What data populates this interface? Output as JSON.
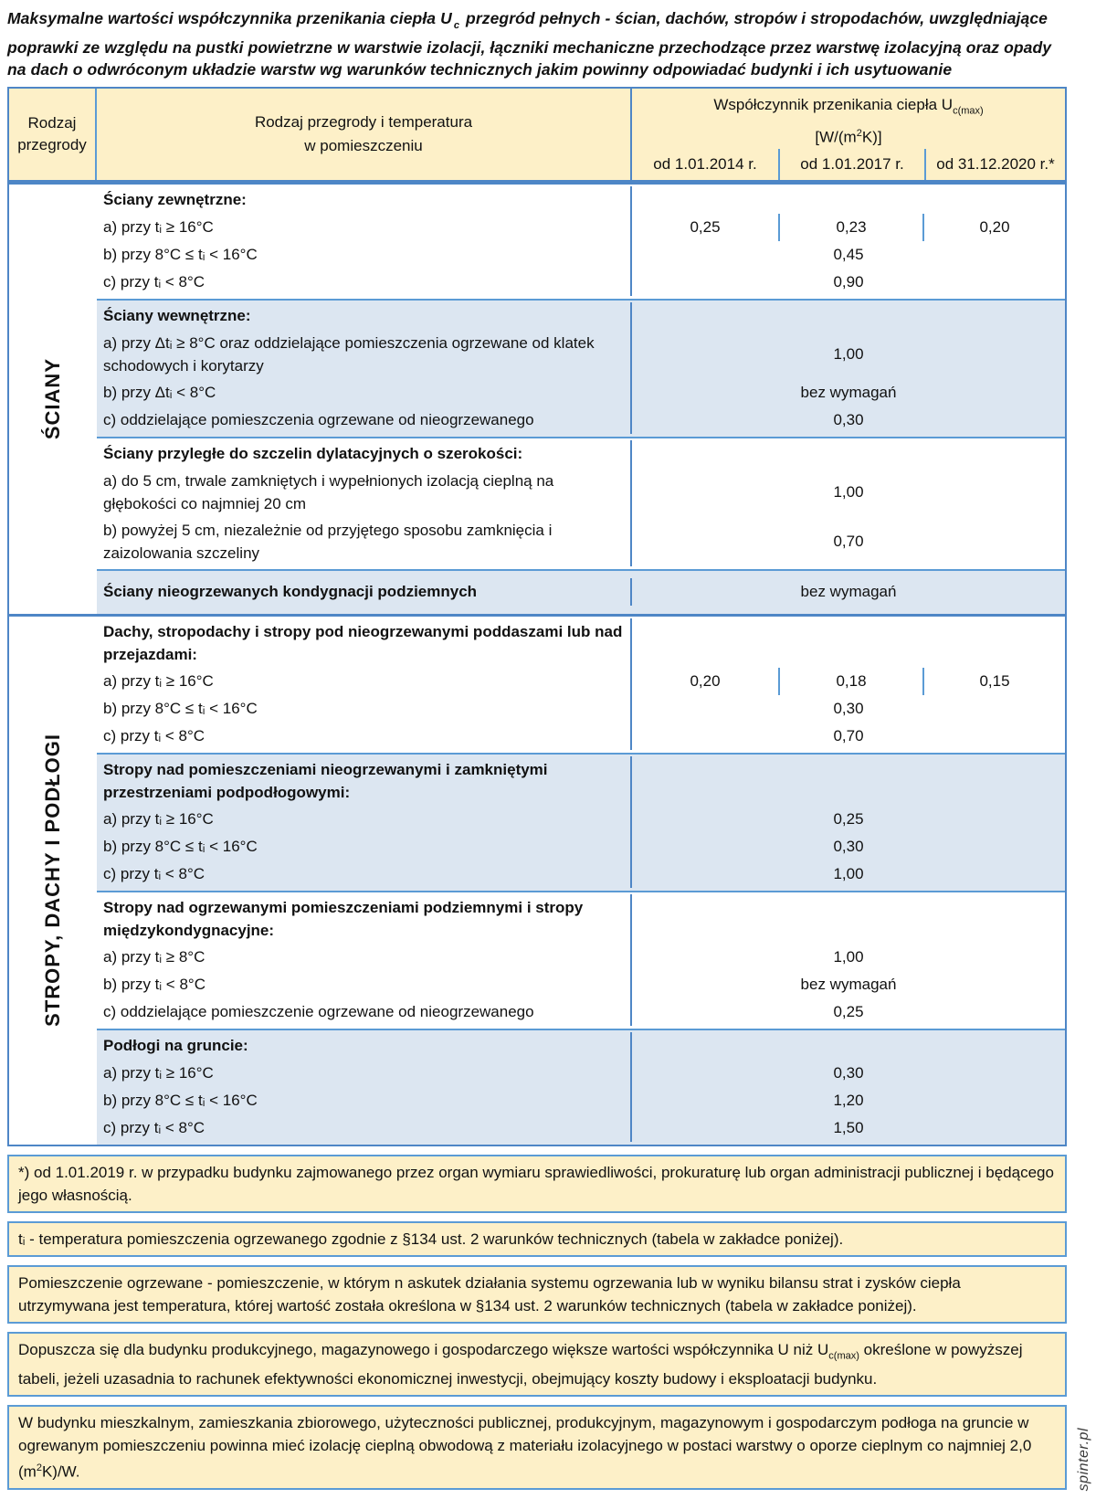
{
  "page": {
    "title_pre": "Maksymalne wartości współczynnika przenikania ciepła U",
    "title_sub": "c",
    "title_post": " przegród pełnych - ścian, dachów, stropów i stropodachów, uwzględniające poprawki ze względu na pustki powietrzne w warstwie izolacji, łączniki mechaniczne przechodzące przez warstwę izolacyjną oraz opady na dach o odwróconym układzie warstw wg warunków technicznych jakim powinny odpowiadać budynki i ich usytuowanie",
    "watermark": "spinter.pl"
  },
  "colors": {
    "cream": "#fdf0c8",
    "shade": "#dce6f1",
    "border": "#4e86c6",
    "border_light": "#5b9bd5"
  },
  "table": {
    "header": {
      "col1": "Rodzaj\nprzegrody",
      "col2": "Rodzaj przegrody i temperatura\nw pomieszczeniu",
      "col3_pre": "Współczynnik przenikania ciepła U",
      "col3_sub": "c(max)",
      "col3_unit_pre": "[W/(m",
      "col3_unit_sup": "2",
      "col3_unit_post": "K)]",
      "date_cols": [
        "od 1.01.2014 r.",
        "od 1.01.2017 r.",
        "od 31.12.2020 r.*"
      ]
    },
    "sections": [
      {
        "label": "ŚCIANY",
        "blocks": [
          {
            "shaded": false,
            "rows": [
              {
                "type": "title",
                "text": "Ściany zewnętrzne:"
              },
              {
                "text": "a) przy tᵢ ≥ 16°C",
                "values": [
                  "0,25",
                  "0,23",
                  "0,20"
                ]
              },
              {
                "text": "b) przy 8°C ≤ tᵢ < 16°C",
                "value": "0,45"
              },
              {
                "text": "c) przy tᵢ < 8°C",
                "value": "0,90"
              }
            ]
          },
          {
            "shaded": true,
            "rows": [
              {
                "type": "title",
                "text": "Ściany wewnętrzne:"
              },
              {
                "text": "a) przy Δtᵢ ≥ 8°C oraz oddzielające pomieszczenia ogrzewane od klatek schodowych i korytarzy",
                "value": "1,00"
              },
              {
                "text": "b) przy Δtᵢ < 8°C",
                "value": "bez wymagań"
              },
              {
                "text": "c) oddzielające pomieszczenia ogrzewane od nieogrzewanego",
                "value": "0,30"
              }
            ]
          },
          {
            "shaded": false,
            "rows": [
              {
                "type": "title",
                "text": "Ściany przyległe do szczelin dylatacyjnych o szerokości:"
              },
              {
                "text": "a) do 5 cm, trwale zamkniętych i wypełnionych izolacją cieplną na głębokości co najmniej 20 cm",
                "value": "1,00"
              },
              {
                "text": "b) powyżej 5 cm, niezależnie od przyjętego sposobu zamknięcia i zaizolowania szczeliny",
                "value": "0,70"
              }
            ]
          },
          {
            "shaded": true,
            "rows": [
              {
                "type": "title",
                "text": "Ściany nieogrzewanych kondygnacji podziemnych",
                "value": "bez wymagań"
              }
            ]
          }
        ]
      },
      {
        "label": "STROPY, DACHY I PODŁOGI",
        "blocks": [
          {
            "shaded": false,
            "rows": [
              {
                "type": "title",
                "text": "Dachy, stropodachy i stropy pod nieogrzewanymi poddaszami lub nad przejazdami:"
              },
              {
                "text": "a) przy tᵢ ≥ 16°C",
                "values": [
                  "0,20",
                  "0,18",
                  "0,15"
                ]
              },
              {
                "text": "b) przy 8°C ≤ tᵢ < 16°C",
                "value": "0,30"
              },
              {
                "text": "c) przy tᵢ < 8°C",
                "value": "0,70"
              }
            ]
          },
          {
            "shaded": true,
            "rows": [
              {
                "type": "title",
                "text": "Stropy nad pomieszczeniami nieogrzewanymi i zamkniętymi przestrzeniami podpodłogowymi:"
              },
              {
                "text": "a) przy tᵢ ≥ 16°C",
                "value": "0,25"
              },
              {
                "text": "b) przy 8°C ≤ tᵢ < 16°C",
                "value": "0,30"
              },
              {
                "text": "c) przy tᵢ < 8°C",
                "value": "1,00"
              }
            ]
          },
          {
            "shaded": false,
            "rows": [
              {
                "type": "title",
                "text": "Stropy nad ogrzewanymi pomieszczeniami podziemnymi i stropy międzykondygnacyjne:"
              },
              {
                "text": "a) przy tᵢ ≥ 8°C",
                "value": "1,00"
              },
              {
                "text": "b) przy tᵢ < 8°C",
                "value": "bez wymagań"
              },
              {
                "text": "c) oddzielające pomieszczenie ogrzewane od nieogrzewanego",
                "value": "0,25"
              }
            ]
          },
          {
            "shaded": true,
            "rows": [
              {
                "type": "title",
                "text": "Podłogi na gruncie:"
              },
              {
                "text": "a) przy tᵢ ≥ 16°C",
                "value": "0,30"
              },
              {
                "text": "b) przy 8°C ≤ tᵢ < 16°C",
                "value": "1,20"
              },
              {
                "text": "c) przy tᵢ < 8°C",
                "value": "1,50"
              }
            ]
          }
        ]
      }
    ]
  },
  "footnotes": [
    {
      "pre": "*) od 1.01.2019 r. w przypadku budynku zajmowanego przez organ wymiaru sprawiedliwości, prokuraturę lub organ administracji publicznej i będącego jego własnością."
    },
    {
      "pre": "tᵢ - temperatura pomieszczenia ogrzewanego zgodnie z §134 ust. 2 warunków technicznych (tabela w zakładce poniżej)."
    },
    {
      "pre": "Pomieszczenie ogrzewane - pomieszczenie, w którym n askutek działania systemu ogrzewania lub w wyniku bilansu strat i zysków ciepła utrzymywana jest temperatura, której wartość została określona w §134 ust. 2 warunków technicznych (tabela w zakładce poniżej)."
    },
    {
      "pre": "Dopuszcza się dla budynku produkcyjnego, magazynowego i gospodarczego większe wartości współczynnika U niż U",
      "sub": "c(max)",
      "post": " określone w powyższej tabeli, jeżeli uzasadnia to rachunek efektywności ekonomicznej inwestycji, obejmujący koszty budowy i eksploatacji budynku."
    },
    {
      "pre": "W budynku mieszkalnym, zamieszkania zbiorowego, użyteczności publicznej, produkcyjnym, magazynowym i gospodarczym podłoga na gruncie w ogrewanym pomieszczeniu powinna mieć izolację cieplną obwodową z materiału izolacyjnego w postaci warstwy o oporze cieplnym co najmniej 2,0 (m",
      "sup": "2",
      "post": "K)/W."
    }
  ]
}
